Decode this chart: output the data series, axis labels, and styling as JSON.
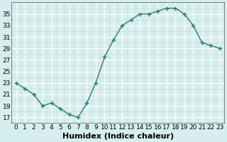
{
  "x": [
    0,
    1,
    2,
    3,
    4,
    5,
    6,
    7,
    8,
    9,
    10,
    11,
    12,
    13,
    14,
    15,
    16,
    17,
    18,
    19,
    20,
    21,
    22,
    23
  ],
  "y": [
    23,
    22,
    21,
    19,
    19.5,
    18.5,
    17.5,
    17,
    19.5,
    23,
    27.5,
    30.5,
    33,
    34,
    35,
    35,
    35.5,
    36,
    36,
    35,
    33,
    30,
    29.5,
    29
  ],
  "line_color": "#2e7d6e",
  "marker_color": "#2e7d6e",
  "bg_color": "#d6eeee",
  "grid_major_color": "#ffffff",
  "grid_minor_color": "#c2dede",
  "xlabel": "Humidex (Indice chaleur)",
  "ylim": [
    16,
    37
  ],
  "xlim": [
    -0.5,
    23.5
  ],
  "yticks": [
    17,
    19,
    21,
    23,
    25,
    27,
    29,
    31,
    33,
    35
  ],
  "xticks": [
    0,
    1,
    2,
    3,
    4,
    5,
    6,
    7,
    8,
    9,
    10,
    11,
    12,
    13,
    14,
    15,
    16,
    17,
    18,
    19,
    20,
    21,
    22,
    23
  ],
  "xlabel_fontsize": 8,
  "tick_fontsize": 6.5,
  "marker_size": 2.5,
  "line_width": 1.0
}
